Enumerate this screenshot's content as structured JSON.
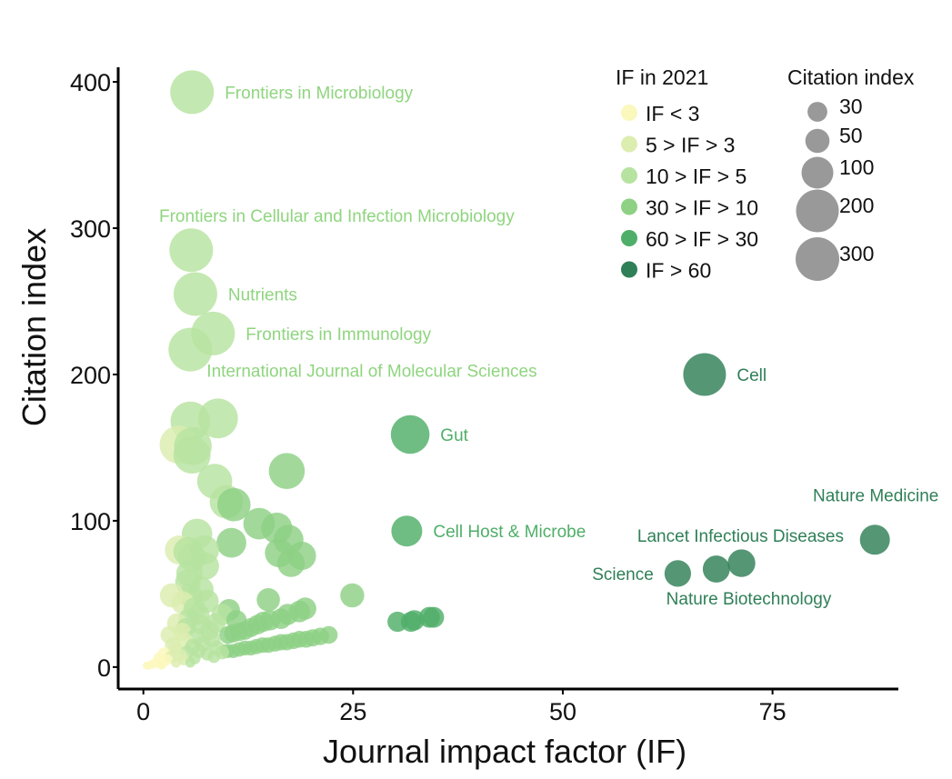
{
  "chart_data": {
    "type": "scatter",
    "title": "",
    "xlabel": "Journal impact factor (IF)",
    "ylabel": "Citation index",
    "xlim": [
      -3,
      90
    ],
    "ylim": [
      -15,
      410
    ],
    "xticks": [
      0,
      25,
      50,
      75
    ],
    "yticks": [
      0,
      100,
      200,
      300,
      400
    ],
    "grid": false,
    "legend_position": "top-right",
    "color_legend": {
      "title": "IF in 2021",
      "entries": [
        {
          "label": "IF < 3",
          "color": "#fbf8bd"
        },
        {
          "label": "5 > IF > 3",
          "color": "#dcedb0"
        },
        {
          "label": "10 > IF > 5",
          "color": "#b7e3a0"
        },
        {
          "label": "30 > IF > 10",
          "color": "#8ed185"
        },
        {
          "label": "60 > IF > 30",
          "color": "#4fae68"
        },
        {
          "label": "IF > 60",
          "color": "#2f7f57"
        }
      ]
    },
    "size_legend": {
      "title": "Citation index",
      "entries": [
        {
          "label": "30",
          "value": 30
        },
        {
          "label": "50",
          "value": 50
        },
        {
          "label": "100",
          "value": 100
        },
        {
          "label": "200",
          "value": 200
        },
        {
          "label": "300",
          "value": 300
        }
      ]
    },
    "annotations": [
      {
        "label": "Frontiers in Microbiology",
        "x": 5.8,
        "y": 393,
        "color": "#8fd57f",
        "side": "right"
      },
      {
        "label": "Frontiers in Cellular and Infection Microbiology",
        "x": 5.7,
        "y": 285,
        "color": "#8fd57f",
        "side": "above"
      },
      {
        "label": "Nutrients",
        "x": 6.2,
        "y": 255,
        "color": "#8fd57f",
        "side": "right"
      },
      {
        "label": "Frontiers in Immunology",
        "x": 8.3,
        "y": 228,
        "color": "#8fd57f",
        "side": "right"
      },
      {
        "label": "International Journal of Molecular Sciences",
        "x": 5.6,
        "y": 217,
        "color": "#8fd57f",
        "side": "below-right"
      },
      {
        "label": "Cell",
        "x": 66.9,
        "y": 200,
        "color": "#2f7f57",
        "side": "right"
      },
      {
        "label": "Gut",
        "x": 31.8,
        "y": 159,
        "color": "#4fae68",
        "side": "right"
      },
      {
        "label": "Cell Host & Microbe",
        "x": 31.4,
        "y": 93,
        "color": "#4fae68",
        "side": "right"
      },
      {
        "label": "Nature Medicine",
        "x": 87.2,
        "y": 87,
        "color": "#2f7f57",
        "side": "above-left"
      },
      {
        "label": "Lancet Infectious Diseases",
        "x": 68.3,
        "y": 67,
        "color": "#2f7f57",
        "side": "above"
      },
      {
        "label": "Science",
        "x": 63.7,
        "y": 64,
        "color": "#2f7f57",
        "side": "left"
      },
      {
        "label": "Nature Biotechnology",
        "x": 71.3,
        "y": 71,
        "color": "#2f7f57",
        "side": "below"
      }
    ],
    "points": [
      {
        "x": 5.8,
        "y": 393
      },
      {
        "x": 5.7,
        "y": 285
      },
      {
        "x": 6.2,
        "y": 255
      },
      {
        "x": 8.3,
        "y": 228
      },
      {
        "x": 5.6,
        "y": 217
      },
      {
        "x": 66.9,
        "y": 200
      },
      {
        "x": 31.8,
        "y": 159
      },
      {
        "x": 31.4,
        "y": 93
      },
      {
        "x": 87.2,
        "y": 87
      },
      {
        "x": 68.3,
        "y": 67
      },
      {
        "x": 63.7,
        "y": 64
      },
      {
        "x": 71.3,
        "y": 71
      },
      {
        "x": 8.9,
        "y": 170
      },
      {
        "x": 5.6,
        "y": 168
      },
      {
        "x": 4.2,
        "y": 152
      },
      {
        "x": 5.9,
        "y": 151
      },
      {
        "x": 5.8,
        "y": 145
      },
      {
        "x": 17.1,
        "y": 134
      },
      {
        "x": 8.5,
        "y": 127
      },
      {
        "x": 9.9,
        "y": 113
      },
      {
        "x": 10.8,
        "y": 111
      },
      {
        "x": 13.8,
        "y": 98
      },
      {
        "x": 15.9,
        "y": 95
      },
      {
        "x": 17.3,
        "y": 87
      },
      {
        "x": 6.4,
        "y": 91
      },
      {
        "x": 10.5,
        "y": 85
      },
      {
        "x": 16.2,
        "y": 78
      },
      {
        "x": 18.9,
        "y": 76
      },
      {
        "x": 17.6,
        "y": 71
      },
      {
        "x": 4.3,
        "y": 80
      },
      {
        "x": 5.3,
        "y": 79
      },
      {
        "x": 7.3,
        "y": 80
      },
      {
        "x": 5.8,
        "y": 75
      },
      {
        "x": 7.4,
        "y": 69
      },
      {
        "x": 5.5,
        "y": 64
      },
      {
        "x": 5.3,
        "y": 58
      },
      {
        "x": 6.9,
        "y": 53
      },
      {
        "x": 5.6,
        "y": 49
      },
      {
        "x": 3.4,
        "y": 49
      },
      {
        "x": 7.6,
        "y": 45
      },
      {
        "x": 24.9,
        "y": 49
      },
      {
        "x": 14.9,
        "y": 46
      },
      {
        "x": 19.3,
        "y": 40
      },
      {
        "x": 18.6,
        "y": 38
      },
      {
        "x": 17.2,
        "y": 36
      },
      {
        "x": 16.4,
        "y": 33
      },
      {
        "x": 15.1,
        "y": 32
      },
      {
        "x": 14.3,
        "y": 31
      },
      {
        "x": 13.6,
        "y": 29
      },
      {
        "x": 12.8,
        "y": 27
      },
      {
        "x": 12.1,
        "y": 25
      },
      {
        "x": 11.4,
        "y": 24
      },
      {
        "x": 10.7,
        "y": 23
      },
      {
        "x": 10.1,
        "y": 22
      },
      {
        "x": 11.1,
        "y": 32
      },
      {
        "x": 10.2,
        "y": 39
      },
      {
        "x": 9.4,
        "y": 36
      },
      {
        "x": 8.6,
        "y": 30
      },
      {
        "x": 30.3,
        "y": 31
      },
      {
        "x": 31.9,
        "y": 31
      },
      {
        "x": 32.3,
        "y": 32
      },
      {
        "x": 34.1,
        "y": 34
      },
      {
        "x": 34.6,
        "y": 34
      },
      {
        "x": 22.1,
        "y": 22
      },
      {
        "x": 21.1,
        "y": 21
      },
      {
        "x": 20.2,
        "y": 20
      },
      {
        "x": 19.4,
        "y": 19
      },
      {
        "x": 18.6,
        "y": 19
      },
      {
        "x": 17.9,
        "y": 18
      },
      {
        "x": 17.1,
        "y": 17
      },
      {
        "x": 16.4,
        "y": 17
      },
      {
        "x": 15.7,
        "y": 16
      },
      {
        "x": 14.9,
        "y": 15
      },
      {
        "x": 14.2,
        "y": 15
      },
      {
        "x": 13.5,
        "y": 14
      },
      {
        "x": 12.8,
        "y": 13
      },
      {
        "x": 12.1,
        "y": 13
      },
      {
        "x": 11.4,
        "y": 12
      },
      {
        "x": 10.7,
        "y": 11
      },
      {
        "x": 10.0,
        "y": 11
      },
      {
        "x": 9.4,
        "y": 10
      },
      {
        "x": 6.1,
        "y": 40
      },
      {
        "x": 6.6,
        "y": 36
      },
      {
        "x": 5.4,
        "y": 33
      },
      {
        "x": 6.9,
        "y": 29
      },
      {
        "x": 5.1,
        "y": 27
      },
      {
        "x": 7.9,
        "y": 25
      },
      {
        "x": 4.6,
        "y": 24
      },
      {
        "x": 6.3,
        "y": 21
      },
      {
        "x": 3.1,
        "y": 22
      },
      {
        "x": 8.2,
        "y": 19
      },
      {
        "x": 4.9,
        "y": 18
      },
      {
        "x": 7.1,
        "y": 16
      },
      {
        "x": 5.9,
        "y": 14
      },
      {
        "x": 8.8,
        "y": 13
      },
      {
        "x": 3.8,
        "y": 12
      },
      {
        "x": 6.6,
        "y": 11
      },
      {
        "x": 5.2,
        "y": 10
      },
      {
        "x": 7.6,
        "y": 9
      },
      {
        "x": 4.4,
        "y": 8
      },
      {
        "x": 3.3,
        "y": 7
      },
      {
        "x": 6.1,
        "y": 6
      },
      {
        "x": 8.4,
        "y": 7
      },
      {
        "x": 4.8,
        "y": 5
      },
      {
        "x": 2.8,
        "y": 5
      },
      {
        "x": 3.9,
        "y": 3
      },
      {
        "x": 5.6,
        "y": 3
      },
      {
        "x": 2.3,
        "y": 2
      },
      {
        "x": 1.6,
        "y": 3
      },
      {
        "x": 1.1,
        "y": 2
      },
      {
        "x": 0.7,
        "y": 1
      },
      {
        "x": 0.4,
        "y": 1
      },
      {
        "x": 1.9,
        "y": 6
      },
      {
        "x": 2.5,
        "y": 9
      },
      {
        "x": 2.1,
        "y": 1
      },
      {
        "x": 3.5,
        "y": 15
      },
      {
        "x": 4.0,
        "y": 30
      },
      {
        "x": 4.7,
        "y": 44
      }
    ]
  }
}
